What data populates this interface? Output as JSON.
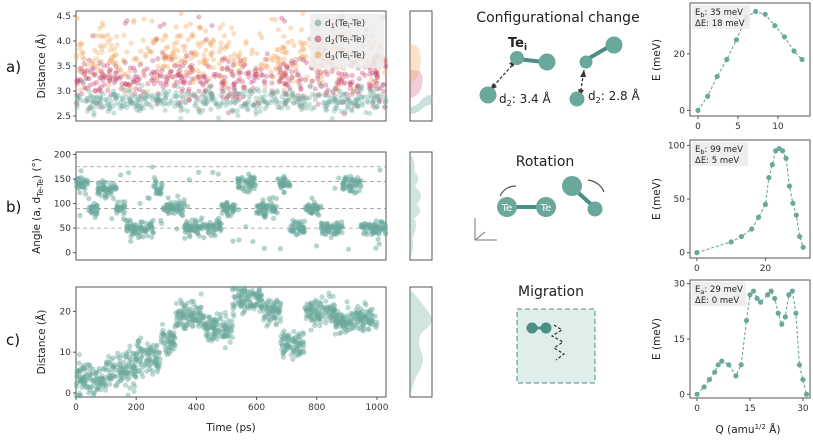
{
  "colors": {
    "teal": "#6aa89c",
    "teal_dark": "#4a8f84",
    "crimson": "#c4426b",
    "orange": "#f0a35a",
    "legend_bg": "#ececec"
  },
  "labels": {
    "panel_a": "a)",
    "panel_b": "b)",
    "panel_c": "c)",
    "title_a": "Configurational change",
    "title_b": "Rotation",
    "title_c": "Migration",
    "te_i": "Te",
    "te_i_sub": "i",
    "d2_a": "d",
    "d2_a_sub": "2",
    "d2_a_val": ": 3.4 Å",
    "d2_b": "d",
    "d2_b_sub": "2",
    "d2_b_val": ": 2.8 Å",
    "te_left": "Te",
    "te_right": "Te"
  },
  "chart_data": [
    {
      "id": "a-scatter",
      "type": "scatter",
      "xlabel": "",
      "ylabel": "Distance (Å)",
      "xlim": [
        0,
        1000
      ],
      "ylim": [
        2.4,
        4.6
      ],
      "yticks": [
        2.5,
        3.0,
        3.5,
        4.0,
        4.5
      ],
      "yticklabels": [
        "2.5",
        "3.0",
        "3.5",
        "4.0",
        "4.5"
      ],
      "series": [
        {
          "name": "d1(Tei-Te)",
          "color": "teal",
          "mean": 2.8,
          "spread": 0.12
        },
        {
          "name": "d2(Tei-Te)",
          "color": "crimson",
          "mean": 3.2,
          "spread": 0.25
        },
        {
          "name": "d3(Tei-Te)",
          "color": "orange",
          "mean": 3.65,
          "spread": 0.3
        }
      ],
      "legend": [
        {
          "main": "d",
          "sub": "1",
          "rest": "(Te",
          "sub2": "i",
          "end": "-Te)"
        },
        {
          "main": "d",
          "sub": "2",
          "rest": "(Te",
          "sub2": "i",
          "end": "-Te)"
        },
        {
          "main": "d",
          "sub": "3",
          "rest": "(Te",
          "sub2": "i",
          "end": "-Te)"
        }
      ],
      "legend_position": "top-right"
    },
    {
      "id": "b-scatter",
      "type": "scatter",
      "ylabel": "Angle (a, d",
      "ylabel_sub": "Te-Te",
      "ylabel_end": ") (°)",
      "xlim": [
        0,
        1000
      ],
      "ylim": [
        -15,
        205
      ],
      "yticks": [
        0,
        50,
        100,
        150,
        200
      ],
      "yticklabels": [
        "0",
        "50",
        "100",
        "150",
        "200"
      ],
      "dashed_levels": [
        50,
        90,
        145,
        175
      ],
      "segments": [
        {
          "x0": 0,
          "x1": 40,
          "y": 140
        },
        {
          "x0": 40,
          "x1": 70,
          "y": 90
        },
        {
          "x0": 70,
          "x1": 130,
          "y": 130
        },
        {
          "x0": 130,
          "x1": 160,
          "y": 90
        },
        {
          "x0": 160,
          "x1": 250,
          "y": 50
        },
        {
          "x0": 250,
          "x1": 280,
          "y": 130
        },
        {
          "x0": 280,
          "x1": 350,
          "y": 90
        },
        {
          "x0": 350,
          "x1": 470,
          "y": 50
        },
        {
          "x0": 470,
          "x1": 520,
          "y": 90
        },
        {
          "x0": 520,
          "x1": 580,
          "y": 140
        },
        {
          "x0": 580,
          "x1": 650,
          "y": 90
        },
        {
          "x0": 650,
          "x1": 690,
          "y": 140
        },
        {
          "x0": 690,
          "x1": 740,
          "y": 50
        },
        {
          "x0": 740,
          "x1": 790,
          "y": 90
        },
        {
          "x0": 790,
          "x1": 860,
          "y": 50
        },
        {
          "x0": 860,
          "x1": 920,
          "y": 140
        },
        {
          "x0": 920,
          "x1": 1000,
          "y": 50
        }
      ]
    },
    {
      "id": "c-scatter",
      "type": "scatter",
      "xlabel": "Time (ps)",
      "ylabel": "Distance (Å)",
      "xlim": [
        0,
        1030
      ],
      "ylim": [
        -1,
        26
      ],
      "xticks": [
        0,
        200,
        400,
        600,
        800,
        1000
      ],
      "xticklabels": [
        "0",
        "200",
        "400",
        "600",
        "800",
        "1000"
      ],
      "yticks": [
        0,
        10,
        20
      ],
      "yticklabels": [
        "0",
        "10",
        "20"
      ],
      "segments": [
        {
          "x0": 0,
          "x1": 100,
          "y": 3
        },
        {
          "x0": 100,
          "x1": 200,
          "y": 6
        },
        {
          "x0": 200,
          "x1": 280,
          "y": 9
        },
        {
          "x0": 280,
          "x1": 330,
          "y": 13
        },
        {
          "x0": 330,
          "x1": 420,
          "y": 19
        },
        {
          "x0": 420,
          "x1": 520,
          "y": 16
        },
        {
          "x0": 520,
          "x1": 620,
          "y": 23
        },
        {
          "x0": 620,
          "x1": 680,
          "y": 20
        },
        {
          "x0": 680,
          "x1": 760,
          "y": 12
        },
        {
          "x0": 760,
          "x1": 860,
          "y": 20
        },
        {
          "x0": 860,
          "x1": 1000,
          "y": 18
        }
      ]
    },
    {
      "id": "a-energy",
      "type": "line",
      "xlabel": "",
      "ylabel": "E (meV)",
      "xlim": [
        -1,
        14
      ],
      "ylim": [
        -2,
        38
      ],
      "xticks": [
        0,
        5,
        10
      ],
      "xticklabels": [
        "0",
        "5",
        "10"
      ],
      "yticks": [
        0,
        20
      ],
      "yticklabels": [
        "0",
        "20"
      ],
      "x": [
        0,
        1.2,
        2.4,
        3.6,
        4.8,
        6.0,
        7.2,
        8.4,
        9.6,
        10.8,
        12.0,
        13.0
      ],
      "y": [
        0,
        5,
        12,
        18,
        25,
        33,
        35,
        34,
        30,
        26,
        21,
        18
      ],
      "annotation": [
        "Eb: 35 meV",
        "ΔE: 18 meV"
      ]
    },
    {
      "id": "b-energy",
      "type": "line",
      "ylabel": "E (meV)",
      "xlim": [
        -2,
        33
      ],
      "ylim": [
        -5,
        105
      ],
      "xticks": [
        0,
        20
      ],
      "xticklabels": [
        "0",
        "20"
      ],
      "yticks": [
        0,
        50,
        100
      ],
      "yticklabels": [
        "0",
        "50",
        "100"
      ],
      "x": [
        0,
        10,
        13,
        16,
        18,
        20,
        21,
        22,
        23,
        24,
        25,
        26,
        27,
        28,
        29,
        30,
        31
      ],
      "y": [
        0,
        10,
        15,
        22,
        33,
        45,
        70,
        82,
        95,
        97,
        95,
        88,
        62,
        46,
        35,
        15,
        5
      ],
      "annotation": [
        "Eb: 99 meV",
        "ΔE: 5 meV"
      ]
    },
    {
      "id": "c-energy",
      "type": "line",
      "xlabel": "Q (amu1/2 Å)",
      "ylabel": "E (meV)",
      "xlim": [
        -2,
        32
      ],
      "ylim": [
        -1,
        31
      ],
      "xticks": [
        0,
        15,
        30
      ],
      "xticklabels": [
        "0",
        "15",
        "30"
      ],
      "yticks": [
        0,
        15,
        30
      ],
      "yticklabels": [
        "0",
        "15",
        "30"
      ],
      "x": [
        0,
        2,
        3.5,
        5,
        6,
        7,
        9,
        11,
        12.5,
        14,
        15,
        16,
        17,
        18,
        20,
        21,
        22,
        23,
        24,
        25,
        26,
        27,
        28,
        29,
        30,
        31
      ],
      "y": [
        0,
        2,
        4,
        6,
        8,
        9,
        8,
        5,
        8,
        20,
        27,
        28,
        26,
        25,
        27,
        28,
        26,
        22,
        19,
        21,
        27,
        28,
        22,
        8,
        4,
        0
      ],
      "annotation": [
        "Ea: 29 meV",
        "ΔE: 0 meV"
      ]
    }
  ],
  "axis_text": {
    "time_label": "Time (ps)",
    "q_label_main": "Q (amu",
    "q_label_sup": "1/2",
    "q_label_end": " Å)",
    "dist_label_a": "Distance (Å)",
    "dist_label_c": "Distance (Å)",
    "angle_label_main": "Angle (a, d",
    "angle_label_sub": "Te-Te",
    "angle_label_end": ") (°)",
    "e_label_a": "E (meV)",
    "e_label_b": "E (meV)",
    "e_label_c": "E (meV)"
  },
  "energy_ann": {
    "a1_main": "E",
    "a1_sub": "b",
    "a1_rest": ": 35 meV",
    "a2": "ΔE: 18 meV",
    "b1_main": "E",
    "b1_sub": "b",
    "b1_rest": ": 99 meV",
    "b2": "ΔE: 5 meV",
    "c1_main": "E",
    "c1_sub": "a",
    "c1_rest": ": 29 meV",
    "c2": "ΔE: 0 meV"
  }
}
